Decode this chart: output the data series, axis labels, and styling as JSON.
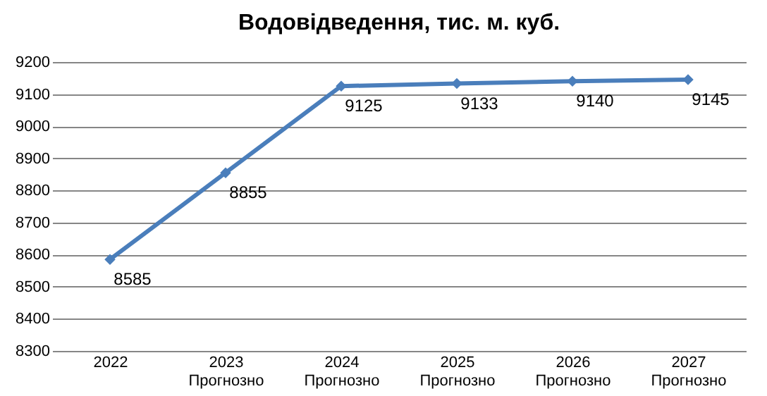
{
  "chart_data": {
    "type": "line",
    "title": "Водовідведення, тис. м. куб.",
    "categories": [
      "2022",
      "2023\nПрогнозно",
      "2024\nПрогнозно",
      "2025\nПрогнозно",
      "2026\nПрогнозно",
      "2027\nПрогнозно"
    ],
    "series": [
      {
        "color": "#4a7ebb",
        "values": [
          8585,
          8855,
          9125,
          9133,
          9140,
          9145
        ]
      }
    ],
    "ylim": [
      8300,
      9200
    ],
    "yticks": [
      8300,
      8400,
      8500,
      8600,
      8700,
      8800,
      8900,
      9000,
      9100,
      9200
    ],
    "grid": "y",
    "marker": "diamond",
    "data_labels": true,
    "legend": false
  }
}
